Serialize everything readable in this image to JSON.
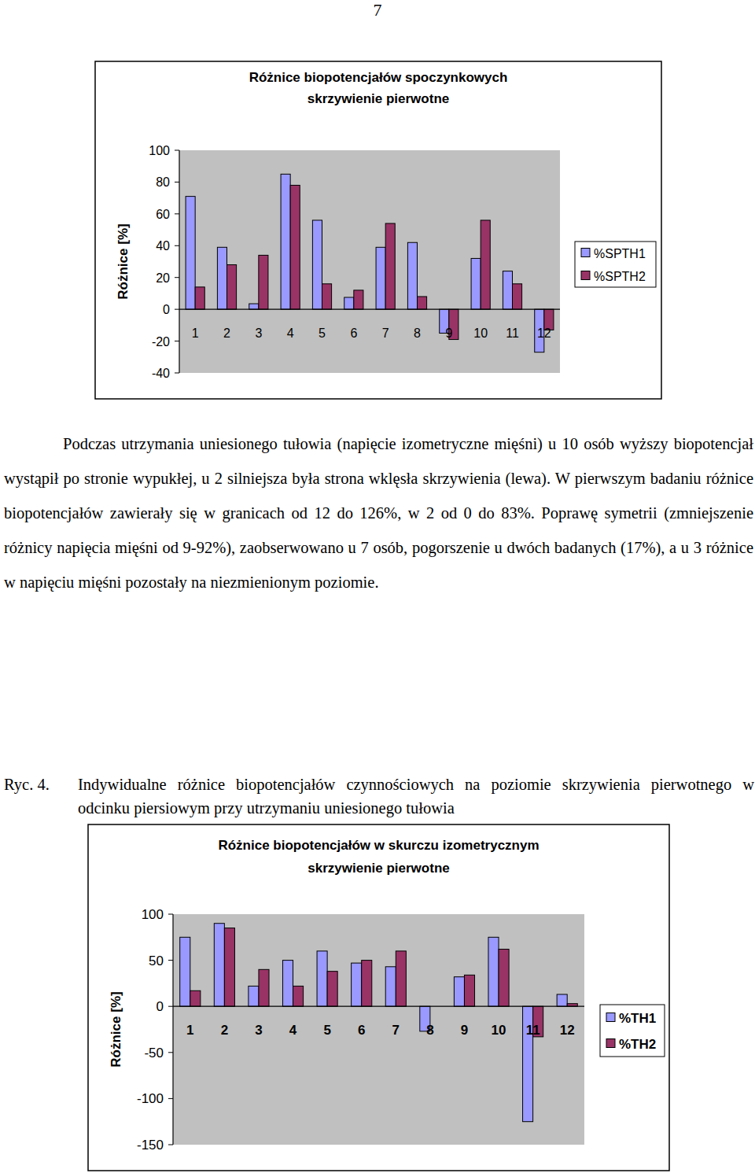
{
  "page_number": "7",
  "chart_data": [
    {
      "type": "bar",
      "title": "Różnice biopotencjałów spoczynkowych",
      "subtitle": "skrzywienie pierwotne",
      "y_label": "Różnice [%]",
      "categories": [
        "1",
        "2",
        "3",
        "4",
        "5",
        "6",
        "7",
        "8",
        "9",
        "10",
        "11",
        "12"
      ],
      "series": [
        {
          "name": "%SPTH1",
          "color": "#9999ff",
          "values": [
            71,
            39,
            3.5,
            85,
            56,
            7.5,
            39,
            42,
            -15,
            32,
            24,
            -27
          ]
        },
        {
          "name": "%SPTH2",
          "color": "#993366",
          "values": [
            14,
            28,
            34,
            78,
            16,
            12,
            54,
            8,
            -19,
            56,
            16,
            -13
          ]
        }
      ],
      "ylim": [
        -40,
        100
      ],
      "yticks": [
        -40,
        -20,
        0,
        20,
        40,
        60,
        80,
        100
      ],
      "grid": false,
      "legend": "right"
    },
    {
      "type": "bar",
      "title": "Różnice biopotencjałów w skurczu izometrycznym",
      "subtitle": "skrzywienie pierwotne",
      "y_label": "Różnice [%]",
      "categories": [
        "1",
        "2",
        "3",
        "4",
        "5",
        "6",
        "7",
        "8",
        "9",
        "10",
        "11",
        "12"
      ],
      "series": [
        {
          "name": "%TH1",
          "color": "#9999ff",
          "values": [
            75,
            90,
            22,
            50,
            60,
            47,
            43,
            -27,
            32,
            75,
            -125,
            13
          ]
        },
        {
          "name": "%TH2",
          "color": "#993366",
          "values": [
            17,
            85,
            40,
            22,
            38,
            50,
            60,
            0,
            34,
            62,
            -33,
            3
          ]
        }
      ],
      "ylim": [
        -150,
        100
      ],
      "yticks": [
        -150,
        -100,
        -50,
        0,
        50,
        100
      ],
      "grid": false,
      "legend": "right"
    }
  ],
  "paragraph": "Podczas utrzymania uniesionego tułowia (napięcie izometryczne mięśni) u 10 osób wyższy biopotencjał wystąpił po stronie wypukłej, u 2 silniejsza była strona wklęsła skrzywienia (lewa). W pierwszym badaniu różnice biopotencjałów zawierały się w granicach od 12 do 126%, w 2 od 0 do 83%. Poprawę symetrii (zmniejszenie różnicy napięcia mięśni od 9-92%), zaobserwowano u 7  osób, pogorszenie u dwóch badanych (17%), a u 3 różnice w napięciu mięśni pozostały na niezmienionym poziomie.",
  "caption": {
    "label": "Ryc. 4.",
    "text": "Indywidualne różnice biopotencjałów czynnościowych na poziomie skrzywienia pierwotnego w odcinku piersiowym przy utrzymaniu uniesionego tułowia"
  }
}
